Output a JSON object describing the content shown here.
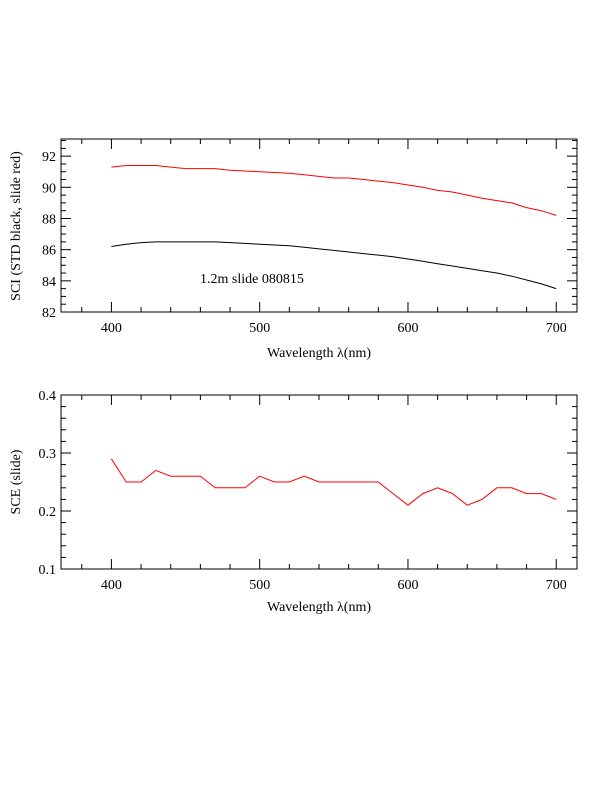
{
  "chart_data": [
    {
      "type": "line",
      "xlabel": "Wavelength λ(nm)",
      "ylabel": "SCI (STD black, slide red)",
      "xlim": [
        366,
        714
      ],
      "ylim": [
        82,
        93.1
      ],
      "xticks": [
        400,
        500,
        600,
        700
      ],
      "yticks": [
        82,
        84,
        86,
        88,
        90,
        92
      ],
      "grid": false,
      "annotation": "1.2m slide 080815",
      "x": [
        400,
        410,
        420,
        430,
        440,
        450,
        460,
        470,
        480,
        490,
        500,
        510,
        520,
        530,
        540,
        550,
        560,
        570,
        580,
        590,
        600,
        610,
        620,
        630,
        640,
        650,
        660,
        670,
        680,
        690,
        700
      ],
      "series": [
        {
          "color": "#ff0000",
          "values": [
            91.3,
            91.4,
            91.4,
            91.4,
            91.3,
            91.2,
            91.2,
            91.2,
            91.1,
            91.05,
            91.0,
            90.95,
            90.9,
            90.8,
            90.7,
            90.6,
            90.6,
            90.5,
            90.4,
            90.3,
            90.15,
            90.0,
            89.8,
            89.7,
            89.5,
            89.3,
            89.15,
            89.0,
            88.7,
            88.5,
            88.2
          ]
        },
        {
          "color": "#000000",
          "values": [
            86.2,
            86.35,
            86.45,
            86.5,
            86.5,
            86.5,
            86.5,
            86.5,
            86.45,
            86.4,
            86.35,
            86.3,
            86.25,
            86.15,
            86.05,
            85.95,
            85.85,
            85.75,
            85.65,
            85.55,
            85.4,
            85.25,
            85.1,
            84.95,
            84.8,
            84.65,
            84.5,
            84.3,
            84.05,
            83.8,
            83.5
          ]
        }
      ]
    },
    {
      "type": "line",
      "xlabel": "Wavelength λ(nm)",
      "ylabel": "SCE (slide)",
      "xlim": [
        366,
        714
      ],
      "ylim": [
        0.1,
        0.4
      ],
      "xticks": [
        400,
        500,
        600,
        700
      ],
      "yticks": [
        0.1,
        0.2,
        0.3,
        0.4
      ],
      "grid": false,
      "x": [
        400,
        410,
        420,
        430,
        440,
        450,
        460,
        470,
        480,
        490,
        500,
        510,
        520,
        530,
        540,
        550,
        560,
        570,
        580,
        590,
        600,
        610,
        620,
        630,
        640,
        650,
        660,
        670,
        680,
        690,
        700
      ],
      "series": [
        {
          "color": "#ff0000",
          "values": [
            0.29,
            0.25,
            0.25,
            0.27,
            0.26,
            0.26,
            0.26,
            0.24,
            0.24,
            0.24,
            0.26,
            0.25,
            0.25,
            0.26,
            0.25,
            0.25,
            0.25,
            0.25,
            0.25,
            0.23,
            0.21,
            0.23,
            0.24,
            0.23,
            0.21,
            0.22,
            0.24,
            0.24,
            0.23,
            0.23,
            0.22
          ]
        }
      ]
    }
  ]
}
